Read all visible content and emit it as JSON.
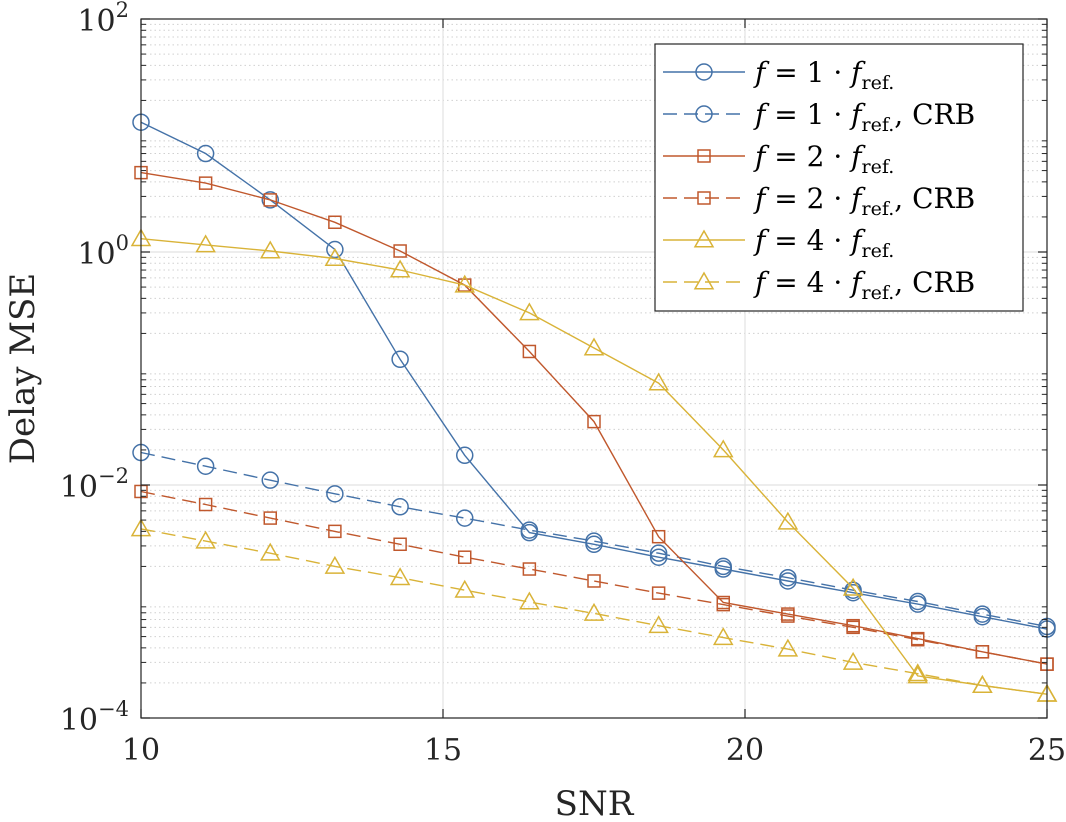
{
  "chart_data": {
    "type": "line",
    "title": "",
    "xlabel": "SNR",
    "ylabel": "Delay MSE",
    "xlim": [
      10,
      25
    ],
    "ylim": [
      0.0001,
      100
    ],
    "yscale": "log",
    "grid": true,
    "minor_grid": true,
    "legend_position": "top-right",
    "x_ticks": [
      {
        "value": 10,
        "label": "10"
      },
      {
        "value": 15,
        "label": "15"
      },
      {
        "value": 20,
        "label": "20"
      },
      {
        "value": 25,
        "label": "25"
      }
    ],
    "y_ticks": [
      {
        "value": 0.0001,
        "base": "10",
        "exp": "−4"
      },
      {
        "value": 0.01,
        "base": "10",
        "exp": "−2"
      },
      {
        "value": 1,
        "base": "10",
        "exp": "0"
      },
      {
        "value": 100,
        "base": "10",
        "exp": "2"
      }
    ],
    "x": [
      10,
      11.07,
      12.14,
      13.21,
      14.29,
      15.36,
      16.43,
      17.5,
      18.57,
      19.64,
      20.71,
      21.79,
      22.86,
      23.93,
      25
    ],
    "series": [
      {
        "name": "f = 1 · f_ref.",
        "legend": {
          "f": "f",
          "mid": " = 1 · ",
          "sub": "ref.",
          "suffix": ""
        },
        "color": "#4472a8",
        "marker": "circle",
        "dash": "solid",
        "values": [
          13,
          7,
          2.8,
          1.05,
          0.12,
          0.018,
          0.0039,
          0.0031,
          0.0024,
          0.0019,
          0.0015,
          0.00119,
          0.00095,
          0.00074,
          0.00058
        ]
      },
      {
        "name": "f = 1 · f_ref., CRB",
        "legend": {
          "f": "f",
          "mid": " = 1 · ",
          "sub": "ref.",
          "suffix": ", CRB"
        },
        "color": "#4472a8",
        "marker": "circle",
        "dash": "dashed",
        "values": [
          0.019,
          0.0145,
          0.011,
          0.0084,
          0.0065,
          0.0052,
          0.0041,
          0.0033,
          0.0026,
          0.002,
          0.0016,
          0.00125,
          0.001,
          0.00078,
          0.00061
        ]
      },
      {
        "name": "f = 2 · f_ref.",
        "legend": {
          "f": "f",
          "mid": " = 2 · ",
          "sub": "ref.",
          "suffix": ""
        },
        "color": "#c0582d",
        "marker": "square",
        "dash": "solid",
        "values": [
          4.8,
          3.9,
          2.8,
          1.8,
          1.02,
          0.52,
          0.14,
          0.035,
          0.0036,
          0.00098,
          0.00078,
          0.00062,
          0.00048,
          0.00037,
          0.00029
        ]
      },
      {
        "name": "f = 2 · f_ref., CRB",
        "legend": {
          "f": "f",
          "mid": " = 2 · ",
          "sub": "ref.",
          "suffix": ", CRB"
        },
        "color": "#c0582d",
        "marker": "square",
        "dash": "dashed",
        "values": [
          0.0088,
          0.0068,
          0.0052,
          0.004,
          0.0031,
          0.0024,
          0.0019,
          0.0015,
          0.00118,
          0.00094,
          0.00075,
          0.0006,
          0.00047,
          0.00037,
          0.00029
        ]
      },
      {
        "name": "f = 4 · f_ref.",
        "legend": {
          "f": "f",
          "mid": " = 4 · ",
          "sub": "ref.",
          "suffix": ""
        },
        "color": "#d9b338",
        "marker": "triangle",
        "dash": "solid",
        "values": [
          1.3,
          1.15,
          1.02,
          0.88,
          0.7,
          0.52,
          0.3,
          0.15,
          0.075,
          0.02,
          0.0048,
          0.0013,
          0.00023,
          0.00019,
          0.00016
        ]
      },
      {
        "name": "f = 4 · f_ref., CRB",
        "legend": {
          "f": "f",
          "mid": " = 4 · ",
          "sub": "ref.",
          "suffix": ", CRB"
        },
        "color": "#d9b338",
        "marker": "triangle",
        "dash": "dashed",
        "values": [
          0.0042,
          0.0033,
          0.0026,
          0.002,
          0.0016,
          0.00125,
          0.00099,
          0.00079,
          0.00062,
          0.00049,
          0.00039,
          0.0003,
          0.00024,
          0.00019,
          0.00016
        ]
      }
    ]
  }
}
